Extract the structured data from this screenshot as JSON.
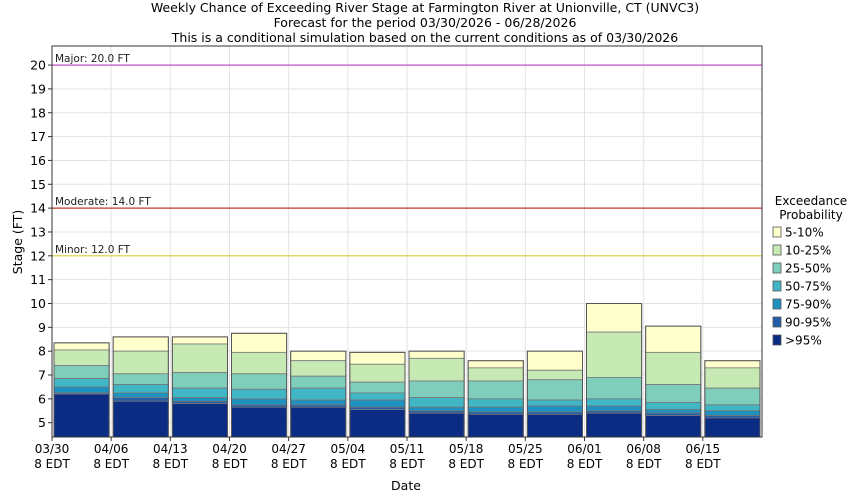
{
  "chart_data": {
    "type": "bar",
    "title_lines": [
      "Weekly Chance of Exceeding River Stage at Farmington River at Unionville, CT (UNVC3)",
      "Forecast for the period 03/30/2026 - 06/28/2026",
      "This is a conditional simulation based on the current conditions as of 03/30/2026"
    ],
    "xlabel": "Date",
    "ylabel": "Stage (FT)",
    "ylim": [
      4.4,
      20.8
    ],
    "yticks": [
      5,
      6,
      7,
      8,
      9,
      10,
      11,
      12,
      13,
      14,
      15,
      16,
      17,
      18,
      19,
      20
    ],
    "date_ticks": [
      {
        "top": "03/30",
        "bottom": "8 EDT"
      },
      {
        "top": "04/06",
        "bottom": "8 EDT"
      },
      {
        "top": "04/13",
        "bottom": "8 EDT"
      },
      {
        "top": "04/20",
        "bottom": "8 EDT"
      },
      {
        "top": "04/27",
        "bottom": "8 EDT"
      },
      {
        "top": "05/04",
        "bottom": "8 EDT"
      },
      {
        "top": "05/11",
        "bottom": "8 EDT"
      },
      {
        "top": "05/18",
        "bottom": "8 EDT"
      },
      {
        "top": "05/25",
        "bottom": "8 EDT"
      },
      {
        "top": "06/01",
        "bottom": "8 EDT"
      },
      {
        "top": "06/08",
        "bottom": "8 EDT"
      },
      {
        "top": "06/15",
        "bottom": "8 EDT"
      }
    ],
    "grid": true,
    "legend_position": "right",
    "legend_title": [
      "Exceedance",
      "Probability"
    ],
    "series": [
      {
        "name": "5-10%",
        "color": "#ffffcc"
      },
      {
        "name": "10-25%",
        "color": "#c7e9b4"
      },
      {
        "name": "25-50%",
        "color": "#7fcdbb"
      },
      {
        "name": "50-75%",
        "color": "#41b6c4"
      },
      {
        "name": "75-90%",
        "color": "#1d91c0"
      },
      {
        "name": "90-95%",
        "color": "#225ea8"
      },
      {
        "name": ">95%",
        "color": "#0c2c84"
      }
    ],
    "weeks": [
      {
        "boundaries": [
          8.35,
          8.05,
          7.4,
          6.85,
          6.5,
          6.25,
          6.2
        ]
      },
      {
        "boundaries": [
          8.6,
          8.0,
          7.05,
          6.6,
          6.25,
          6.05,
          5.9
        ]
      },
      {
        "boundaries": [
          8.6,
          8.3,
          7.1,
          6.45,
          6.05,
          5.9,
          5.8
        ]
      },
      {
        "boundaries": [
          8.75,
          7.95,
          7.05,
          6.4,
          6.0,
          5.75,
          5.65
        ]
      },
      {
        "boundaries": [
          8.0,
          7.6,
          6.95,
          6.45,
          5.95,
          5.75,
          5.65
        ]
      },
      {
        "boundaries": [
          7.95,
          7.45,
          6.7,
          6.25,
          5.95,
          5.65,
          5.55
        ]
      },
      {
        "boundaries": [
          8.0,
          7.7,
          6.75,
          6.05,
          5.65,
          5.5,
          5.4
        ]
      },
      {
        "boundaries": [
          7.6,
          7.3,
          6.75,
          6.0,
          5.65,
          5.45,
          5.35
        ]
      },
      {
        "boundaries": [
          8.0,
          7.2,
          6.8,
          5.95,
          5.7,
          5.45,
          5.35
        ]
      },
      {
        "boundaries": [
          10.0,
          8.8,
          6.9,
          6.0,
          5.7,
          5.5,
          5.4
        ]
      },
      {
        "boundaries": [
          9.05,
          7.95,
          6.6,
          5.85,
          5.55,
          5.4,
          5.3
        ]
      },
      {
        "boundaries": [
          7.6,
          7.3,
          6.45,
          5.75,
          5.5,
          5.3,
          5.2
        ]
      }
    ],
    "thresholds": [
      {
        "label": "Major: 20.0 FT",
        "value": 20.0,
        "color": "#bf40bf"
      },
      {
        "label": "Moderate: 14.0 FT",
        "value": 14.0,
        "color": "#c0392b"
      },
      {
        "label": "Minor: 12.0 FT",
        "value": 12.0,
        "color": "#e0d040"
      }
    ]
  }
}
